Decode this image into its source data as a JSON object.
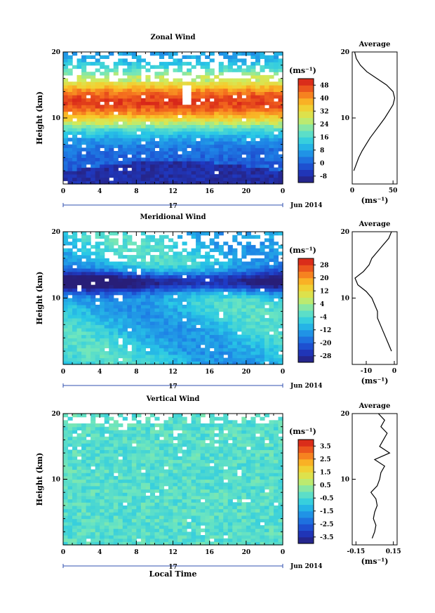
{
  "figure": {
    "date_label": "Jun 2014",
    "x_axis_title": "Local Time",
    "day_label": "17",
    "unit_label": "(ms⁻¹)",
    "y_label": "Height (km)",
    "avg_title": "Average",
    "time_ticks": [
      "0",
      "4",
      "8",
      "12",
      "16",
      "20",
      "0"
    ],
    "height_ticks": [
      "20",
      "10"
    ]
  },
  "chart_data": [
    {
      "type": "heatmap",
      "title": "Zonal Wind",
      "xlabel": "",
      "ylabel": "Height (km)",
      "xlim": [
        0,
        24
      ],
      "ylim": [
        0,
        20
      ],
      "colorbar_ticks": [
        "48",
        "40",
        "32",
        "24",
        "16",
        "8",
        "0",
        "-8"
      ],
      "colorbar_range": [
        -12,
        52
      ],
      "field": {
        "jet_height": 12.5,
        "jet_speed": 48,
        "surface_speed": -6,
        "top_speed": 5
      },
      "profile": {
        "title": "Average",
        "xlabel": "(ms⁻¹)",
        "xticks": [
          "0",
          "50"
        ],
        "xlim": [
          0,
          55
        ],
        "heights": [
          2,
          3,
          4,
          5,
          6,
          7,
          8,
          9,
          10,
          11,
          12,
          13,
          14,
          15,
          16,
          17,
          18,
          19,
          20
        ],
        "values": [
          2,
          5,
          8,
          12,
          17,
          22,
          28,
          34,
          40,
          45,
          50,
          52,
          50,
          42,
          30,
          18,
          10,
          5,
          3
        ]
      }
    },
    {
      "type": "heatmap",
      "title": "Meridional Wind",
      "xlabel": "",
      "ylabel": "Height (km)",
      "xlim": [
        0,
        24
      ],
      "ylim": [
        0,
        20
      ],
      "colorbar_ticks": [
        "28",
        "20",
        "12",
        "4",
        "-4",
        "-12",
        "-20",
        "-28"
      ],
      "colorbar_range": [
        -32,
        32
      ],
      "field": {
        "min_height": 12.5,
        "min_speed": -24,
        "surface_speed": -6
      },
      "profile": {
        "title": "Average",
        "xlabel": "(ms⁻¹)",
        "xticks": [
          "-10",
          "0"
        ],
        "xlim": [
          -15,
          1
        ],
        "heights": [
          2,
          3,
          4,
          5,
          6,
          7,
          8,
          9,
          10,
          11,
          12,
          13,
          14,
          15,
          16,
          17,
          18,
          19,
          20
        ],
        "values": [
          -1,
          -2,
          -3,
          -4,
          -5,
          -6,
          -6,
          -7,
          -8,
          -10,
          -13,
          -14,
          -11,
          -9,
          -8,
          -6,
          -4,
          -2,
          -1
        ]
      }
    },
    {
      "type": "heatmap",
      "title": "Vertical Wind",
      "xlabel": "Local Time",
      "ylabel": "Height (km)",
      "xlim": [
        0,
        24
      ],
      "ylim": [
        0,
        20
      ],
      "colorbar_ticks": [
        "3.5",
        "2.5",
        "1.5",
        "0.5",
        "-0.5",
        "-1.5",
        "-2.5",
        "-3.5"
      ],
      "colorbar_range": [
        -4,
        4
      ],
      "field": {
        "background_speed": -0.3
      },
      "profile": {
        "title": "Average",
        "xlabel": "(ms⁻¹)",
        "xticks": [
          "-0.15",
          "0.15"
        ],
        "xlim": [
          -0.18,
          0.18
        ],
        "heights": [
          1,
          2,
          3,
          4,
          5,
          6,
          7,
          8,
          9,
          10,
          11,
          12,
          13,
          14,
          15,
          16,
          17,
          18,
          19,
          20
        ],
        "values": [
          -0.02,
          0.0,
          0.01,
          -0.01,
          0.0,
          0.02,
          0.01,
          -0.03,
          0.02,
          0.04,
          0.05,
          0.08,
          0.0,
          0.12,
          0.04,
          0.07,
          0.1,
          0.05,
          0.08,
          0.03
        ]
      }
    }
  ]
}
